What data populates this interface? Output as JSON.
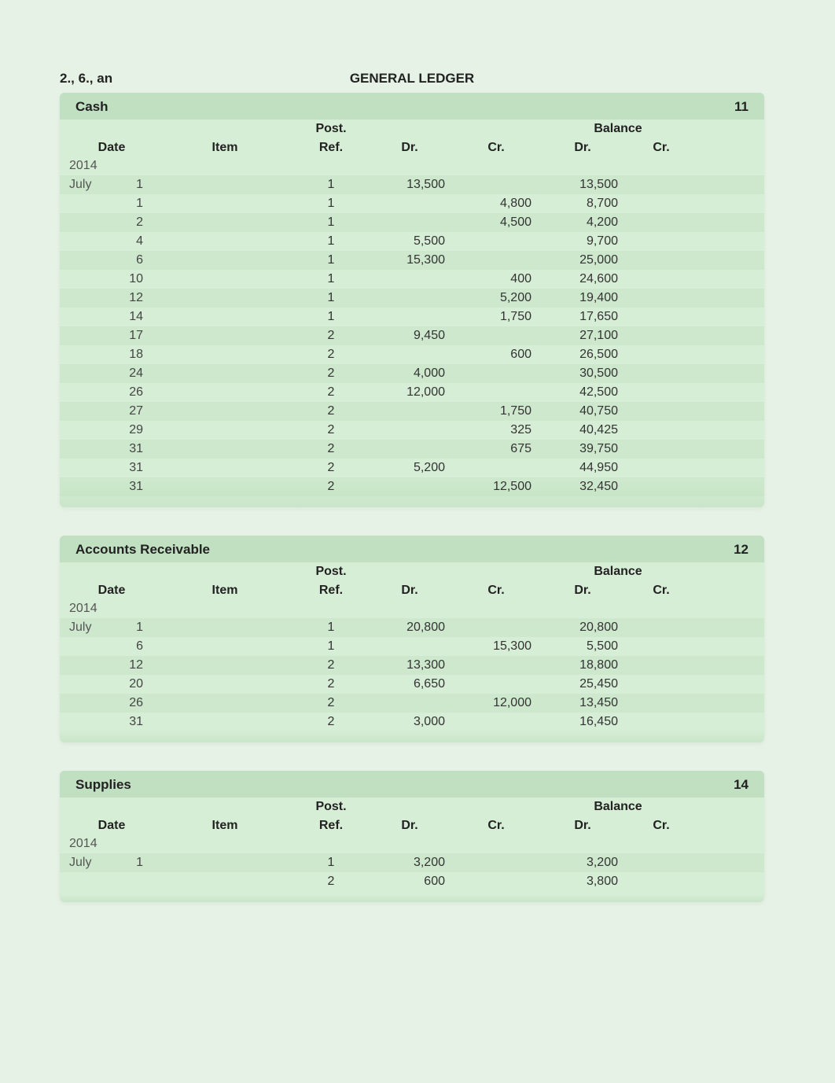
{
  "page": {
    "top_label": "2., 6., an",
    "title": "GENERAL LEDGER",
    "background_color": "#e6f2e6",
    "ledger_bg_color": "#d6edd6",
    "header_bg_color": "#c1e0c1",
    "text_color": "#333333",
    "font_family": "Arial",
    "font_size_body": 16,
    "font_size_header": 17
  },
  "columns": {
    "date": "Date",
    "item": "Item",
    "post": "Post.",
    "ref": "Ref.",
    "dr": "Dr.",
    "cr": "Cr.",
    "balance": "Balance",
    "bal_dr": "Dr.",
    "bal_cr": "Cr."
  },
  "ledgers": [
    {
      "name": "Cash",
      "account_no": "11",
      "year": "2014",
      "month": "July",
      "rows": [
        {
          "day": "1",
          "ref": "1",
          "dr": "13,500",
          "cr": "",
          "bal_dr": "13,500",
          "bal_cr": ""
        },
        {
          "day": "1",
          "ref": "1",
          "dr": "",
          "cr": "4,800",
          "bal_dr": "8,700",
          "bal_cr": ""
        },
        {
          "day": "2",
          "ref": "1",
          "dr": "",
          "cr": "4,500",
          "bal_dr": "4,200",
          "bal_cr": ""
        },
        {
          "day": "4",
          "ref": "1",
          "dr": "5,500",
          "cr": "",
          "bal_dr": "9,700",
          "bal_cr": ""
        },
        {
          "day": "6",
          "ref": "1",
          "dr": "15,300",
          "cr": "",
          "bal_dr": "25,000",
          "bal_cr": ""
        },
        {
          "day": "10",
          "ref": "1",
          "dr": "",
          "cr": "400",
          "bal_dr": "24,600",
          "bal_cr": ""
        },
        {
          "day": "12",
          "ref": "1",
          "dr": "",
          "cr": "5,200",
          "bal_dr": "19,400",
          "bal_cr": ""
        },
        {
          "day": "14",
          "ref": "1",
          "dr": "",
          "cr": "1,750",
          "bal_dr": "17,650",
          "bal_cr": ""
        },
        {
          "day": "17",
          "ref": "2",
          "dr": "9,450",
          "cr": "",
          "bal_dr": "27,100",
          "bal_cr": ""
        },
        {
          "day": "18",
          "ref": "2",
          "dr": "",
          "cr": "600",
          "bal_dr": "26,500",
          "bal_cr": ""
        },
        {
          "day": "24",
          "ref": "2",
          "dr": "4,000",
          "cr": "",
          "bal_dr": "30,500",
          "bal_cr": ""
        },
        {
          "day": "26",
          "ref": "2",
          "dr": "12,000",
          "cr": "",
          "bal_dr": "42,500",
          "bal_cr": ""
        },
        {
          "day": "27",
          "ref": "2",
          "dr": "",
          "cr": "1,750",
          "bal_dr": "40,750",
          "bal_cr": ""
        },
        {
          "day": "29",
          "ref": "2",
          "dr": "",
          "cr": "325",
          "bal_dr": "40,425",
          "bal_cr": ""
        },
        {
          "day": "31",
          "ref": "2",
          "dr": "",
          "cr": "675",
          "bal_dr": "39,750",
          "bal_cr": ""
        },
        {
          "day": "31",
          "ref": "2",
          "dr": "5,200",
          "cr": "",
          "bal_dr": "44,950",
          "bal_cr": ""
        },
        {
          "day": "31",
          "ref": "2",
          "dr": "",
          "cr": "12,500",
          "bal_dr": "32,450",
          "bal_cr": ""
        }
      ]
    },
    {
      "name": "Accounts Receivable",
      "account_no": "12",
      "year": "2014",
      "month": "July",
      "rows": [
        {
          "day": "1",
          "ref": "1",
          "dr": "20,800",
          "cr": "",
          "bal_dr": "20,800",
          "bal_cr": ""
        },
        {
          "day": "6",
          "ref": "1",
          "dr": "",
          "cr": "15,300",
          "bal_dr": "5,500",
          "bal_cr": ""
        },
        {
          "day": "12",
          "ref": "2",
          "dr": "13,300",
          "cr": "",
          "bal_dr": "18,800",
          "bal_cr": ""
        },
        {
          "day": "20",
          "ref": "2",
          "dr": "6,650",
          "cr": "",
          "bal_dr": "25,450",
          "bal_cr": ""
        },
        {
          "day": "26",
          "ref": "2",
          "dr": "",
          "cr": "12,000",
          "bal_dr": "13,450",
          "bal_cr": ""
        },
        {
          "day": "31",
          "ref": "2",
          "dr": "3,000",
          "cr": "",
          "bal_dr": "16,450",
          "bal_cr": ""
        }
      ]
    },
    {
      "name": "Supplies",
      "account_no": "14",
      "year": "2014",
      "month": "July",
      "rows": [
        {
          "day": "1",
          "ref": "1",
          "dr": "3,200",
          "cr": "",
          "bal_dr": "3,200",
          "bal_cr": ""
        },
        {
          "day": "",
          "ref": "2",
          "dr": "600",
          "cr": "",
          "bal_dr": "3,800",
          "bal_cr": ""
        }
      ]
    }
  ]
}
